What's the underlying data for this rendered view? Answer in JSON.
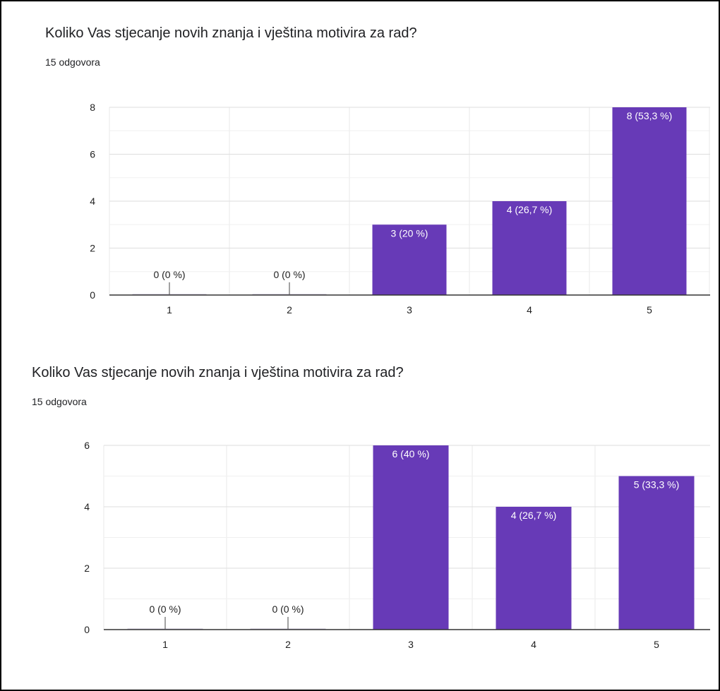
{
  "colors": {
    "bar": "#673ab7",
    "grid": "#e8e8e8",
    "axis": "#333333",
    "label_dark": "#212121",
    "label_light": "#ffffff"
  },
  "chart_data": [
    {
      "type": "bar",
      "title": "Koliko Vas stjecanje novih znanja i vještina motivira za rad?",
      "subtitle": "15 odgovora",
      "categories": [
        "1",
        "2",
        "3",
        "4",
        "5"
      ],
      "values": [
        0,
        0,
        3,
        4,
        8
      ],
      "data_labels": [
        "0 (0 %)",
        "0 (0 %)",
        "3 (20 %)",
        "4 (26,7 %)",
        "8 (53,3 %)"
      ],
      "y_ticks": [
        "0",
        "2",
        "4",
        "6",
        "8"
      ],
      "ylim": [
        0,
        8
      ],
      "grid": true,
      "legend": "none"
    },
    {
      "type": "bar",
      "title": "Koliko Vas stjecanje novih znanja i vještina motivira za rad?",
      "subtitle": "15 odgovora",
      "categories": [
        "1",
        "2",
        "3",
        "4",
        "5"
      ],
      "values": [
        0,
        0,
        6,
        4,
        5
      ],
      "data_labels": [
        "0 (0 %)",
        "0 (0 %)",
        "6 (40 %)",
        "4 (26,7 %)",
        "5 (33,3 %)"
      ],
      "y_ticks": [
        "0",
        "2",
        "4",
        "6"
      ],
      "ylim": [
        0,
        6
      ],
      "grid": true,
      "legend": "none"
    }
  ]
}
